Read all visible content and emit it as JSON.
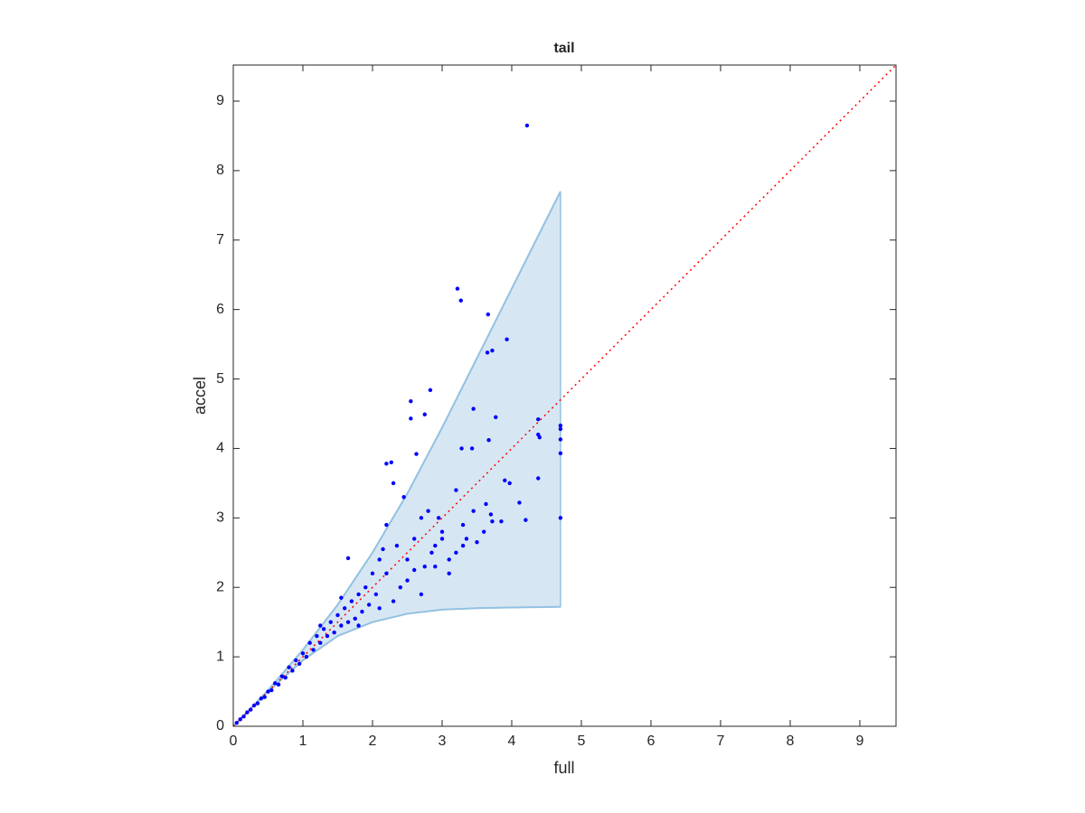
{
  "chart_data": {
    "type": "scatter",
    "title": "tail",
    "xlabel": "full",
    "ylabel": "accel",
    "color": "#0000ff",
    "xlim": [
      0,
      9.52
    ],
    "ylim": [
      0,
      9.52
    ],
    "xticks": [
      0,
      1,
      2,
      3,
      4,
      5,
      6,
      7,
      8,
      9
    ],
    "yticks": [
      0,
      1,
      2,
      3,
      4,
      5,
      6,
      7,
      8,
      9
    ],
    "band": {
      "color": "#d6e7f3",
      "edge_color": "#93c1e1",
      "x": [
        0,
        0.5,
        1,
        1.5,
        2,
        2.5,
        3,
        3.5,
        4,
        4.7
      ],
      "upper": [
        0,
        0.52,
        1.1,
        1.75,
        2.5,
        3.35,
        4.3,
        5.3,
        6.3,
        7.7
      ],
      "lower": [
        0,
        0.5,
        0.95,
        1.3,
        1.5,
        1.62,
        1.68,
        1.7,
        1.71,
        1.72
      ]
    },
    "reference_line": {
      "color": "#ff0000",
      "x": [
        0,
        9.52
      ],
      "y": [
        0,
        9.52
      ]
    },
    "x": [
      4.22,
      3.22,
      3.27,
      3.66,
      3.65,
      3.72,
      3.93,
      2.83,
      2.55,
      2.55,
      2.75,
      3.45,
      3.77,
      2.2,
      2.27,
      2.63,
      3.28,
      3.43,
      3.67,
      4.38,
      4.38,
      4.4,
      4.7,
      4.7,
      4.7,
      4.7,
      4.7,
      4.38,
      4.2,
      4.11,
      3.9,
      3.97,
      3.63,
      3.7,
      3.72,
      3.6,
      3.5,
      3.3,
      3.3,
      3.2,
      3.0,
      3.1,
      3.0,
      2.9,
      2.8,
      2.85,
      2.7,
      2.75,
      2.6,
      2.5,
      2.45,
      2.4,
      2.3,
      2.35,
      2.2,
      2.2,
      2.1,
      2.05,
      2.0,
      1.95,
      1.9,
      1.85,
      1.8,
      1.75,
      1.7,
      1.65,
      1.6,
      1.55,
      1.5,
      1.45,
      1.4,
      1.35,
      1.3,
      1.25,
      1.2,
      1.15,
      1.1,
      1.05,
      1.0,
      0.95,
      0.9,
      0.85,
      0.8,
      0.75,
      0.7,
      0.65,
      0.6,
      0.55,
      0.5,
      0.45,
      0.4,
      0.35,
      0.3,
      0.25,
      0.2,
      0.15,
      0.1,
      0.05,
      1.65,
      2.1,
      2.5,
      2.9,
      3.35,
      1.8,
      2.3,
      2.7,
      3.1,
      3.2,
      2.95,
      3.45,
      3.85,
      2.6,
      2.15,
      1.55,
      1.25
    ],
    "y": [
      8.65,
      6.3,
      6.13,
      5.93,
      5.38,
      5.41,
      5.57,
      4.84,
      4.68,
      4.43,
      4.49,
      4.57,
      4.45,
      3.78,
      3.8,
      3.92,
      4.0,
      4.0,
      4.12,
      4.42,
      4.2,
      4.16,
      4.33,
      4.28,
      4.13,
      3.93,
      3.0,
      3.57,
      2.97,
      3.22,
      3.54,
      3.5,
      3.2,
      3.05,
      2.95,
      2.8,
      2.65,
      2.9,
      2.6,
      2.5,
      2.7,
      2.2,
      2.8,
      2.6,
      3.1,
      2.5,
      3.0,
      2.3,
      2.7,
      2.4,
      3.3,
      2.0,
      3.5,
      2.6,
      2.9,
      2.2,
      2.4,
      1.9,
      2.2,
      1.75,
      2.0,
      1.65,
      1.9,
      1.55,
      1.8,
      1.5,
      1.7,
      1.45,
      1.6,
      1.35,
      1.5,
      1.3,
      1.4,
      1.2,
      1.3,
      1.1,
      1.2,
      1.0,
      1.05,
      0.9,
      0.95,
      0.8,
      0.85,
      0.7,
      0.72,
      0.6,
      0.62,
      0.52,
      0.5,
      0.42,
      0.4,
      0.33,
      0.3,
      0.24,
      0.2,
      0.14,
      0.1,
      0.05,
      2.42,
      1.7,
      2.1,
      2.3,
      2.7,
      1.45,
      1.8,
      1.9,
      2.4,
      3.4,
      3.0,
      3.1,
      2.95,
      2.25,
      2.55,
      1.85,
      1.45
    ]
  }
}
